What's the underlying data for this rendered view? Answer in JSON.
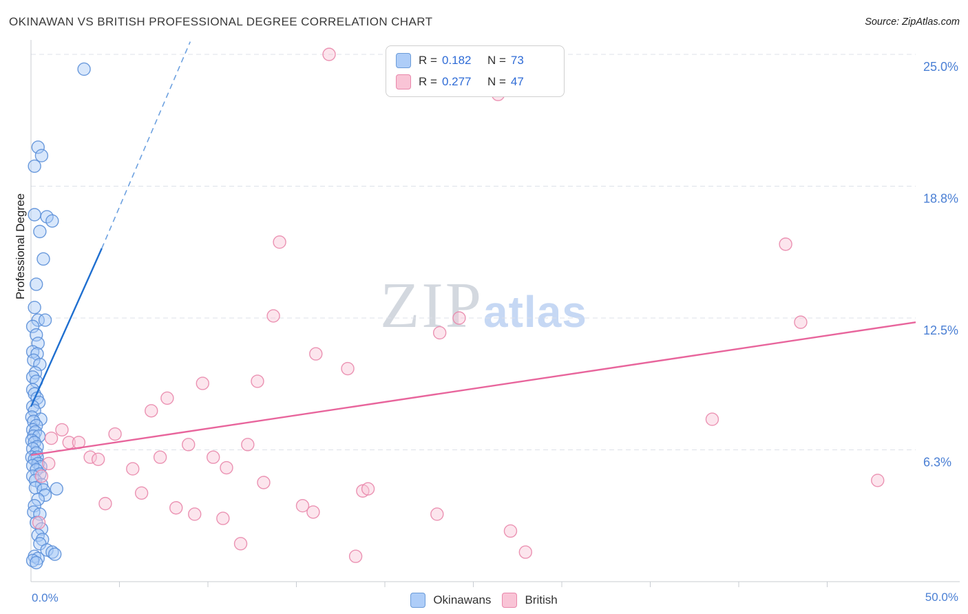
{
  "header": {
    "title": "OKINAWAN VS BRITISH PROFESSIONAL DEGREE CORRELATION CHART",
    "source": "Source: ZipAtlas.com"
  },
  "watermark": {
    "zip": "ZIP",
    "atlas": "atlas"
  },
  "axes": {
    "y_label": "Professional Degree",
    "x_min_label": "0.0%",
    "x_max_label": "50.0%"
  },
  "legend_box": {
    "rows": [
      {
        "series": "Okinawans",
        "r_label": "R =",
        "r_value": "0.182",
        "n_label": "N =",
        "n_value": "73"
      },
      {
        "series": "British",
        "r_label": "R =",
        "r_value": "0.277",
        "n_label": "N =",
        "n_value": "47"
      }
    ]
  },
  "bottom_legend": {
    "items": [
      {
        "label": "Okinawans"
      },
      {
        "label": "British"
      }
    ]
  },
  "colors": {
    "blue_fill": "#A9C9F7",
    "blue_stroke": "#5B8FD8",
    "blue_trend": "#1F6FD0",
    "pink_fill": "#F9C6D7",
    "pink_stroke": "#E987AB",
    "pink_trend": "#E8659C",
    "axis_label_blue": "#4A7FD4",
    "gridline": "#DDE1E8",
    "axis_line": "#C8CCD2"
  },
  "chart_data": {
    "type": "scatter",
    "title": "OKINAWAN VS BRITISH PROFESSIONAL DEGREE CORRELATION CHART",
    "ylabel": "Professional Degree",
    "xlim": [
      0,
      50
    ],
    "ylim": [
      0,
      25.6
    ],
    "x_tick_step": 5,
    "grid": "horizontal-dashed",
    "legend_position": "top-center",
    "y_ticks": [
      {
        "value": 6.25,
        "label": "6.3%"
      },
      {
        "value": 12.5,
        "label": "12.5%"
      },
      {
        "value": 18.75,
        "label": "18.8%"
      },
      {
        "value": 25.0,
        "label": "25.0%"
      }
    ],
    "series": [
      {
        "name": "Okinawans",
        "R": 0.182,
        "N": 73,
        "fill": "#A9C9F7",
        "stroke": "#5B8FD8",
        "trend_color": "#1F6FD0",
        "trend_solid": [
          [
            0,
            8.3
          ],
          [
            4.0,
            15.8
          ]
        ],
        "trend_dashed": [
          [
            4.0,
            15.8
          ],
          [
            9.0,
            25.6
          ]
        ],
        "points": [
          [
            3.0,
            24.3
          ],
          [
            0.4,
            20.6
          ],
          [
            0.6,
            20.2
          ],
          [
            0.2,
            19.7
          ],
          [
            0.2,
            17.4
          ],
          [
            0.9,
            17.3
          ],
          [
            1.2,
            17.1
          ],
          [
            0.5,
            16.6
          ],
          [
            0.7,
            15.3
          ],
          [
            0.3,
            14.1
          ],
          [
            0.2,
            13.0
          ],
          [
            0.4,
            12.4
          ],
          [
            0.8,
            12.4
          ],
          [
            0.1,
            12.1
          ],
          [
            0.3,
            11.7
          ],
          [
            0.4,
            11.3
          ],
          [
            0.1,
            10.9
          ],
          [
            0.35,
            10.8
          ],
          [
            0.15,
            10.5
          ],
          [
            0.5,
            10.3
          ],
          [
            0.25,
            9.9
          ],
          [
            0.1,
            9.7
          ],
          [
            0.3,
            9.5
          ],
          [
            0.1,
            9.1
          ],
          [
            0.2,
            8.9
          ],
          [
            0.35,
            8.7
          ],
          [
            0.45,
            8.5
          ],
          [
            0.1,
            8.3
          ],
          [
            0.2,
            8.1
          ],
          [
            0.05,
            7.8
          ],
          [
            0.55,
            7.7
          ],
          [
            0.15,
            7.6
          ],
          [
            0.3,
            7.4
          ],
          [
            0.1,
            7.2
          ],
          [
            0.25,
            7.1
          ],
          [
            0.15,
            6.9
          ],
          [
            0.45,
            6.9
          ],
          [
            0.05,
            6.7
          ],
          [
            0.2,
            6.6
          ],
          [
            0.35,
            6.4
          ],
          [
            0.1,
            6.3
          ],
          [
            0.3,
            6.1
          ],
          [
            0.05,
            5.9
          ],
          [
            0.35,
            5.9
          ],
          [
            0.2,
            5.8
          ],
          [
            0.4,
            5.6
          ],
          [
            0.55,
            5.45
          ],
          [
            0.1,
            5.5
          ],
          [
            0.3,
            5.3
          ],
          [
            0.5,
            5.1
          ],
          [
            0.1,
            5.0
          ],
          [
            0.25,
            4.8
          ],
          [
            0.6,
            4.6
          ],
          [
            0.25,
            4.45
          ],
          [
            1.45,
            4.4
          ],
          [
            0.7,
            4.35
          ],
          [
            0.8,
            4.1
          ],
          [
            0.4,
            3.9
          ],
          [
            0.2,
            3.6
          ],
          [
            0.15,
            3.3
          ],
          [
            0.5,
            3.2
          ],
          [
            0.3,
            2.8
          ],
          [
            0.6,
            2.5
          ],
          [
            0.4,
            2.2
          ],
          [
            0.65,
            2.0
          ],
          [
            0.5,
            1.8
          ],
          [
            0.9,
            1.5
          ],
          [
            1.2,
            1.4
          ],
          [
            1.35,
            1.3
          ],
          [
            0.2,
            1.2
          ],
          [
            0.4,
            1.1
          ],
          [
            0.1,
            1.0
          ],
          [
            0.3,
            0.9
          ]
        ]
      },
      {
        "name": "British",
        "R": 0.277,
        "N": 47,
        "fill": "#F9C6D7",
        "stroke": "#E987AB",
        "trend_color": "#E8659C",
        "trend_solid": [
          [
            0,
            6.0
          ],
          [
            50,
            12.3
          ]
        ],
        "trend_dashed": null,
        "points": [
          [
            16.85,
            25.0
          ],
          [
            26.4,
            23.1
          ],
          [
            14.05,
            16.1
          ],
          [
            42.65,
            16.0
          ],
          [
            13.7,
            12.6
          ],
          [
            24.2,
            12.5
          ],
          [
            23.1,
            11.8
          ],
          [
            43.5,
            12.3
          ],
          [
            16.1,
            10.8
          ],
          [
            17.9,
            10.1
          ],
          [
            9.7,
            9.4
          ],
          [
            12.8,
            9.5
          ],
          [
            7.7,
            8.7
          ],
          [
            6.8,
            8.1
          ],
          [
            38.5,
            7.7
          ],
          [
            1.75,
            7.2
          ],
          [
            4.75,
            7.0
          ],
          [
            1.15,
            6.8
          ],
          [
            2.15,
            6.6
          ],
          [
            2.7,
            6.6
          ],
          [
            8.9,
            6.5
          ],
          [
            12.25,
            6.5
          ],
          [
            10.3,
            5.9
          ],
          [
            3.35,
            5.9
          ],
          [
            3.8,
            5.8
          ],
          [
            7.3,
            5.9
          ],
          [
            11.05,
            5.4
          ],
          [
            5.75,
            5.35
          ],
          [
            0.6,
            5.0
          ],
          [
            13.15,
            4.7
          ],
          [
            6.25,
            4.2
          ],
          [
            4.2,
            3.7
          ],
          [
            18.75,
            4.3
          ],
          [
            19.05,
            4.4
          ],
          [
            15.35,
            3.6
          ],
          [
            15.95,
            3.3
          ],
          [
            8.2,
            3.5
          ],
          [
            9.25,
            3.2
          ],
          [
            10.85,
            3.0
          ],
          [
            22.95,
            3.2
          ],
          [
            0.45,
            2.8
          ],
          [
            27.1,
            2.4
          ],
          [
            11.85,
            1.8
          ],
          [
            18.35,
            1.2
          ],
          [
            27.95,
            1.4
          ],
          [
            47.85,
            4.8
          ],
          [
            1.0,
            5.6
          ]
        ]
      }
    ]
  }
}
